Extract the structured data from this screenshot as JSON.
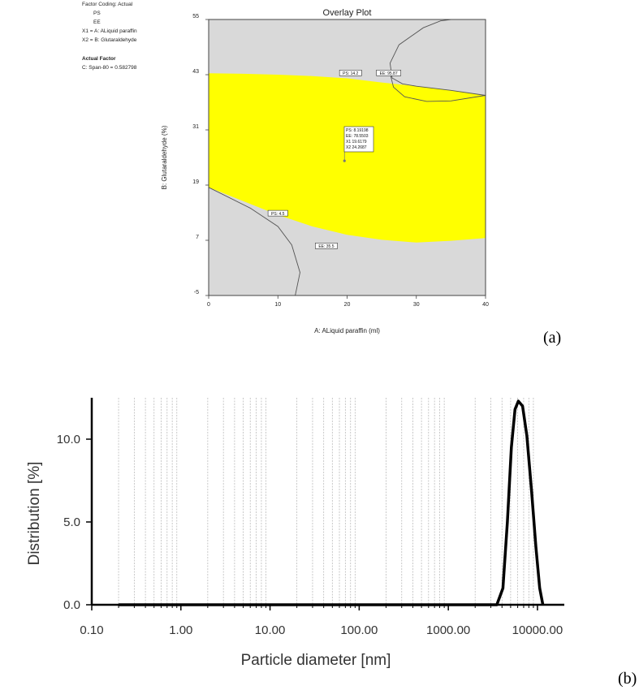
{
  "legend": {
    "coding": "Factor Coding: Actual",
    "responses": [
      "PS",
      "EE"
    ],
    "x1": "X1 = A: ALiquid paraffin",
    "x2": "X2 = B: Glutaraldehyde",
    "actual_heading": "Actual Factor",
    "actual_value": "C: Span-80 = 0.582798"
  },
  "panel_labels": {
    "a": "(a)",
    "b": "(b)"
  },
  "chart_data": [
    {
      "type": "contour",
      "title": "Overlay Plot",
      "xlabel": "A: ALiquid paraffin  (ml)",
      "ylabel": "B: Glutaraldehyde  (%)",
      "xlim": [
        0,
        40
      ],
      "ylim": [
        -5,
        55
      ],
      "x_ticks": [
        "0",
        "10",
        "20",
        "30",
        "40"
      ],
      "y_ticks": [
        "-5",
        "7",
        "19",
        "31",
        "43",
        "55"
      ],
      "grid": false,
      "colors": {
        "feasible": "#ffff00",
        "infeasible": "#d9d9d9",
        "contour": "#555555"
      },
      "feasible_region": {
        "upper_boundary": [
          [
            0,
            43.3
          ],
          [
            5,
            43.2
          ],
          [
            10,
            43.0
          ],
          [
            15,
            42.7
          ],
          [
            20,
            42.2
          ],
          [
            25,
            41.3
          ],
          [
            30,
            40.5
          ],
          [
            35,
            39.6
          ],
          [
            40,
            38.5
          ]
        ],
        "lower_boundary": [
          [
            0,
            18.5
          ],
          [
            5,
            15.5
          ],
          [
            10,
            12.5
          ],
          [
            15,
            10.0
          ],
          [
            20,
            8.2
          ],
          [
            25,
            7.1
          ],
          [
            30,
            6.5
          ],
          [
            35,
            6.9
          ],
          [
            40,
            7.5
          ]
        ]
      },
      "contours": [
        {
          "name": "EE",
          "points": [
            [
              40,
              38.5
            ],
            [
              35,
              39.6
            ],
            [
              30,
              40.5
            ],
            [
              28,
              41.0
            ],
            [
              26.5,
              42.3
            ],
            [
              26.2,
              45.5
            ],
            [
              27.5,
              49.5
            ],
            [
              31,
              53.2
            ],
            [
              33.5,
              54.7
            ],
            [
              35,
              55
            ]
          ]
        },
        {
          "name": "EE lower",
          "points": [
            [
              26.2,
              43.3
            ],
            [
              26.7,
              40.3
            ],
            [
              28.3,
              38.2
            ],
            [
              31.5,
              37.2
            ],
            [
              35,
              37.3
            ],
            [
              40,
              38.5
            ]
          ]
        },
        {
          "name": "PS",
          "points": [
            [
              0,
              18.5
            ],
            [
              6,
              14.0
            ],
            [
              10,
              10.0
            ],
            [
              12,
              6.0
            ],
            [
              13.2,
              0.0
            ],
            [
              12.5,
              -5.0
            ]
          ]
        }
      ],
      "contour_labels": [
        {
          "text": "PS: 14.2",
          "x": 20.5,
          "y": 43.3
        },
        {
          "text": "EE: 95.87",
          "x": 26.0,
          "y": 43.3
        },
        {
          "text": "PS: 4.5",
          "x": 10.0,
          "y": 12.8
        },
        {
          "text": "EE: 35.5",
          "x": 17.0,
          "y": 5.7
        }
      ],
      "flag": {
        "x": 19.6179,
        "y": 24.2687,
        "lines": [
          "PS:   8.19198",
          "EE:    78.5503",
          "X1   19.6179",
          "X2   24.2687"
        ]
      }
    },
    {
      "type": "line",
      "xscale": "log",
      "xlabel": "Particle diameter [nm]",
      "ylabel": "Distribution [%]",
      "xlim": [
        0.1,
        20000
      ],
      "ylim": [
        0,
        12.5
      ],
      "x_ticks": [
        "0.10",
        "1.00",
        "10.00",
        "100.00",
        "1000.00",
        "10000.00"
      ],
      "y_ticks": [
        "0.0",
        "5.0",
        "10.0"
      ],
      "grid": "vertical-minor-dashed",
      "colors": {
        "line": "#000000",
        "grid": "#bbbbbb"
      },
      "series": [
        {
          "x": [
            0.2,
            3500,
            4100,
            4600,
            5100,
            5600,
            6100,
            6800,
            7600,
            8600,
            9600,
            10600,
            11500
          ],
          "y": [
            0,
            0,
            1.0,
            5.0,
            9.5,
            11.8,
            12.3,
            12.0,
            10.2,
            6.8,
            3.5,
            1.0,
            0
          ]
        }
      ]
    }
  ]
}
